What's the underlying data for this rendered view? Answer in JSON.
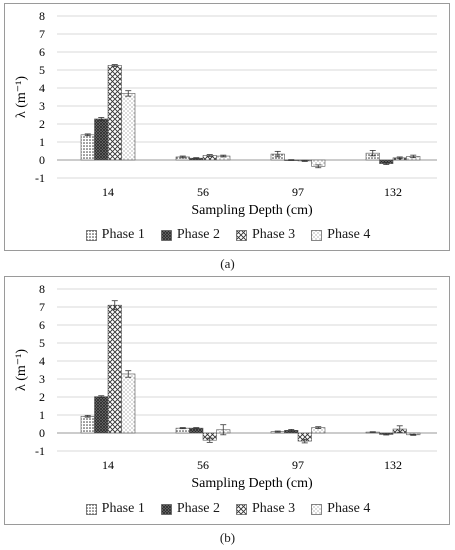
{
  "chart_data": [
    {
      "type": "bar",
      "panel": "a",
      "caption": "(a)",
      "title": "",
      "xlabel": "Sampling Depth (cm)",
      "ylabel": "λ (m⁻¹)",
      "ylim": [
        -1,
        8
      ],
      "yticks": [
        -1,
        0,
        1,
        2,
        3,
        4,
        5,
        6,
        7,
        8
      ],
      "grid": true,
      "legend_position": "bottom",
      "categories": [
        "14",
        "56",
        "97",
        "132"
      ],
      "series": [
        {
          "name": "Phase 1",
          "pattern": "dots-dense",
          "values": [
            1.4,
            0.17,
            0.33,
            0.38
          ],
          "errors": [
            0.05,
            0.05,
            0.15,
            0.15
          ]
        },
        {
          "name": "Phase 2",
          "pattern": "grid-dark",
          "values": [
            2.28,
            0.1,
            0.0,
            -0.2
          ],
          "errors": [
            0.08,
            0.03,
            0.02,
            0.05
          ]
        },
        {
          "name": "Phase 3",
          "pattern": "crosshatch",
          "values": [
            5.25,
            0.25,
            -0.05,
            0.12
          ],
          "errors": [
            0.05,
            0.05,
            0.03,
            0.05
          ]
        },
        {
          "name": "Phase 4",
          "pattern": "dots-sparse",
          "values": [
            3.7,
            0.22,
            -0.35,
            0.2
          ],
          "errors": [
            0.15,
            0.05,
            0.08,
            0.07
          ]
        }
      ]
    },
    {
      "type": "bar",
      "panel": "b",
      "caption": "(b)",
      "title": "",
      "xlabel": "Sampling Depth (cm)",
      "ylabel": "λ (m⁻¹)",
      "ylim": [
        -1,
        8
      ],
      "yticks": [
        -1,
        0,
        1,
        2,
        3,
        4,
        5,
        6,
        7,
        8
      ],
      "grid": true,
      "legend_position": "bottom",
      "categories": [
        "14",
        "56",
        "97",
        "132"
      ],
      "series": [
        {
          "name": "Phase 1",
          "pattern": "dots-dense",
          "values": [
            0.93,
            0.27,
            0.08,
            0.05
          ],
          "errors": [
            0.05,
            0.03,
            0.03,
            0.02
          ]
        },
        {
          "name": "Phase 2",
          "pattern": "grid-dark",
          "values": [
            2.02,
            0.27,
            0.15,
            -0.08
          ],
          "errors": [
            0.05,
            0.03,
            0.05,
            0.03
          ]
        },
        {
          "name": "Phase 3",
          "pattern": "crosshatch",
          "values": [
            7.1,
            -0.4,
            -0.45,
            0.22
          ],
          "errors": [
            0.25,
            0.12,
            0.1,
            0.18
          ]
        },
        {
          "name": "Phase 4",
          "pattern": "dots-sparse",
          "values": [
            3.28,
            0.18,
            0.3,
            -0.1
          ],
          "errors": [
            0.18,
            0.28,
            0.05,
            0.03
          ]
        }
      ]
    }
  ]
}
